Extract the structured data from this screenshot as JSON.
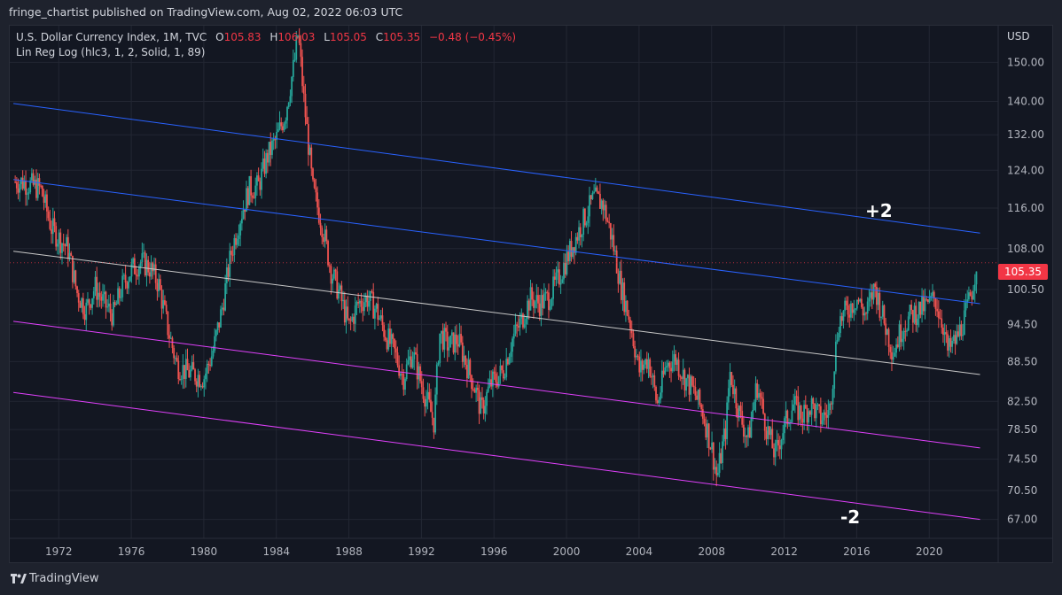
{
  "header": {
    "published": "fringe_chartist published on TradingView.com, Aug 02, 2022 06:03 UTC"
  },
  "legend": {
    "symbol": "U.S. Dollar Currency Index, 1M, TVC",
    "open_label": "O",
    "open": "105.83",
    "high_label": "H",
    "high": "106.03",
    "low_label": "L",
    "low": "105.05",
    "close_label": "C",
    "close": "105.35",
    "change": "−0.48 (−0.45%)",
    "indicator": "Lin Reg Log (hlc3, 1, 2, Solid, 1, 89)"
  },
  "axis": {
    "currency": "USD",
    "last_price": "105.35"
  },
  "annotations": {
    "upper": "+2",
    "lower": "-2"
  },
  "footer": {
    "brand": "TradingView"
  },
  "colors": {
    "background": "#131722",
    "grid": "#232733",
    "up": "#26a69a",
    "down": "#ef5350",
    "regression_blue": "#2962ff",
    "regression_mid": "#c8c8c8",
    "regression_magenta": "#e040fb",
    "price_tag": "#f23645"
  },
  "chart_data": {
    "type": "line",
    "title": "U.S. Dollar Currency Index, 1M, TVC",
    "scale": "log",
    "xlabel": "",
    "ylabel": "USD",
    "xlim": [
      1969.3,
      2023.8
    ],
    "ylim": [
      64.8,
      160.0
    ],
    "x_ticks": [
      1972,
      1976,
      1980,
      1984,
      1988,
      1992,
      1996,
      2000,
      2004,
      2008,
      2012,
      2016,
      2020
    ],
    "y_ticks": [
      67.0,
      70.5,
      74.5,
      78.5,
      82.5,
      88.5,
      94.5,
      100.5,
      108.0,
      116.0,
      124.0,
      132.0,
      140.0,
      150.0
    ],
    "series": [
      {
        "name": "U.S. Dollar Currency Index (monthly close, approx.)",
        "x": [
          1970.0,
          1971.0,
          1971.6,
          1972.0,
          1972.5,
          1973.0,
          1973.5,
          1974.0,
          1974.5,
          1975.0,
          1975.5,
          1976.0,
          1976.5,
          1977.0,
          1977.5,
          1978.0,
          1978.5,
          1979.0,
          1979.5,
          1980.0,
          1980.5,
          1981.0,
          1981.5,
          1982.0,
          1982.5,
          1983.0,
          1983.5,
          1984.0,
          1984.5,
          1985.0,
          1985.2,
          1985.5,
          1986.0,
          1986.5,
          1987.0,
          1987.5,
          1988.0,
          1988.5,
          1989.0,
          1989.5,
          1990.0,
          1990.5,
          1991.0,
          1991.5,
          1992.0,
          1992.7,
          1993.0,
          1993.5,
          1994.0,
          1994.5,
          1995.0,
          1995.3,
          1995.8,
          1996.5,
          1997.0,
          1997.5,
          1998.0,
          1998.5,
          1999.0,
          1999.5,
          2000.0,
          2000.5,
          2001.0,
          2001.5,
          2002.0,
          2002.5,
          2003.0,
          2003.5,
          2004.0,
          2004.5,
          2005.0,
          2005.5,
          2006.0,
          2006.5,
          2007.0,
          2007.5,
          2008.0,
          2008.3,
          2008.8,
          2009.0,
          2009.5,
          2010.0,
          2010.5,
          2011.0,
          2011.5,
          2012.0,
          2012.5,
          2013.0,
          2013.5,
          2014.0,
          2014.5,
          2015.0,
          2015.5,
          2016.0,
          2016.5,
          2017.0,
          2017.5,
          2018.0,
          2018.5,
          2019.0,
          2019.5,
          2020.0,
          2020.3,
          2020.8,
          2021.0,
          2021.5,
          2022.0,
          2022.4,
          2022.6
        ],
        "values": [
          121.5,
          120.0,
          112.0,
          110.0,
          108.0,
          100.0,
          97.0,
          101.0,
          98.0,
          96.0,
          101.0,
          104.0,
          105.5,
          104.5,
          101.5,
          94.0,
          88.0,
          87.0,
          86.5,
          86.0,
          90.0,
          97.0,
          107.0,
          114.0,
          120.0,
          120.5,
          127.0,
          131.0,
          137.0,
          150.0,
          158.0,
          141.0,
          120.0,
          113.0,
          104.0,
          99.5,
          94.0,
          98.0,
          99.0,
          97.0,
          93.0,
          90.0,
          86.0,
          90.0,
          85.0,
          79.5,
          93.0,
          91.0,
          92.0,
          88.0,
          84.0,
          81.0,
          85.0,
          87.0,
          92.0,
          95.0,
          99.0,
          98.0,
          99.0,
          102.0,
          106.0,
          110.0,
          114.0,
          118.0,
          117.0,
          110.0,
          101.0,
          95.0,
          87.0,
          89.0,
          82.0,
          88.0,
          89.0,
          86.0,
          84.0,
          81.0,
          76.0,
          72.0,
          79.0,
          87.0,
          81.0,
          77.0,
          85.0,
          79.0,
          75.0,
          79.0,
          82.0,
          80.5,
          82.0,
          80.0,
          81.0,
          95.0,
          97.0,
          99.0,
          96.0,
          101.0,
          95.0,
          90.0,
          94.0,
          96.0,
          97.0,
          98.0,
          99.0,
          94.0,
          90.0,
          92.0,
          96.0,
          101.0,
          105.35
        ]
      },
      {
        "name": "Regression +2",
        "x": [
          1969.5,
          2022.8
        ],
        "values": [
          139.5,
          111.0
        ]
      },
      {
        "name": "Regression +1",
        "x": [
          1969.5,
          2022.8
        ],
        "values": [
          122.0,
          98.0
        ]
      },
      {
        "name": "Regression mid",
        "x": [
          1969.5,
          2022.8
        ],
        "values": [
          107.5,
          86.5
        ]
      },
      {
        "name": "Regression -1",
        "x": [
          1969.5,
          2022.8
        ],
        "values": [
          95.0,
          76.0
        ]
      },
      {
        "name": "Regression -2",
        "x": [
          1969.5,
          2022.8
        ],
        "values": [
          83.8,
          67.0
        ]
      }
    ]
  }
}
